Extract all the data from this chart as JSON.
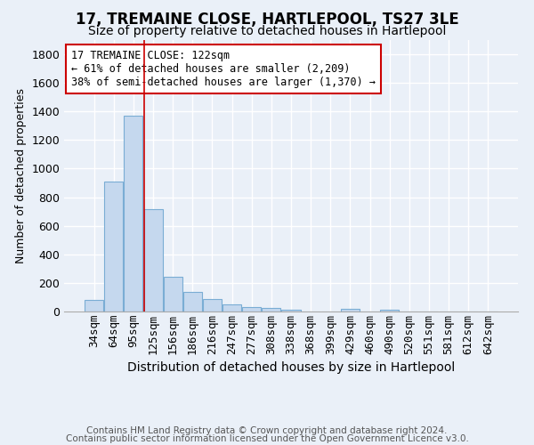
{
  "title": "17, TREMAINE CLOSE, HARTLEPOOL, TS27 3LE",
  "subtitle": "Size of property relative to detached houses in Hartlepool",
  "xlabel": "Distribution of detached houses by size in Hartlepool",
  "ylabel": "Number of detached properties",
  "bar_labels": [
    "34sqm",
    "64sqm",
    "95sqm",
    "125sqm",
    "156sqm",
    "186sqm",
    "216sqm",
    "247sqm",
    "277sqm",
    "308sqm",
    "338sqm",
    "368sqm",
    "399sqm",
    "429sqm",
    "460sqm",
    "490sqm",
    "520sqm",
    "551sqm",
    "581sqm",
    "612sqm",
    "642sqm"
  ],
  "bar_values": [
    80,
    910,
    1370,
    715,
    245,
    140,
    85,
    50,
    30,
    25,
    15,
    0,
    0,
    20,
    0,
    15,
    0,
    0,
    0,
    0,
    0
  ],
  "bar_color": "#c5d8ee",
  "bar_edge_color": "#7aadd4",
  "ylim": [
    0,
    1900
  ],
  "yticks": [
    0,
    200,
    400,
    600,
    800,
    1000,
    1200,
    1400,
    1600,
    1800
  ],
  "vline_index": 3,
  "annotation_text": "17 TREMAINE CLOSE: 122sqm\n← 61% of detached houses are smaller (2,209)\n38% of semi-detached houses are larger (1,370) →",
  "annotation_box_color": "#ffffff",
  "annotation_box_edge": "#cc0000",
  "vline_color": "#cc0000",
  "footer_line1": "Contains HM Land Registry data © Crown copyright and database right 2024.",
  "footer_line2": "Contains public sector information licensed under the Open Government Licence v3.0.",
  "background_color": "#eaf0f8",
  "plot_background": "#eaf0f8",
  "grid_color": "#ffffff",
  "title_fontsize": 12,
  "subtitle_fontsize": 10,
  "xlabel_fontsize": 10,
  "ylabel_fontsize": 9,
  "tick_fontsize": 9,
  "annotation_fontsize": 8.5,
  "footer_fontsize": 7.5
}
